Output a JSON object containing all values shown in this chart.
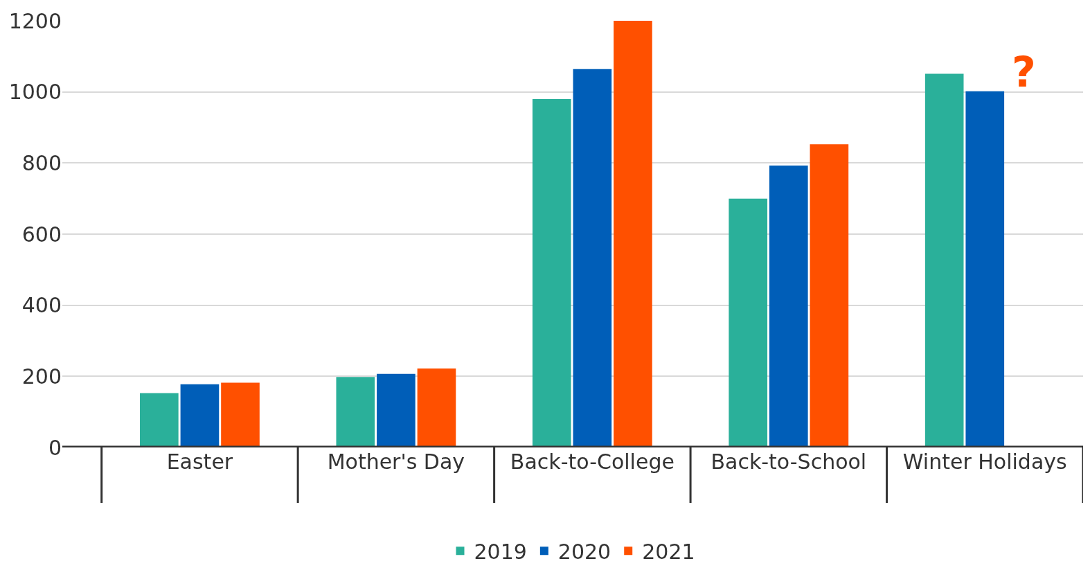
{
  "chart_data": {
    "type": "bar",
    "categories": [
      "Easter",
      "Mother's Day",
      "Back-to-College",
      "Back-to-School",
      "Winter Holidays"
    ],
    "series": [
      {
        "name": "2019",
        "color": "#2ab09a",
        "values": [
          153,
          198,
          980,
          700,
          1051
        ]
      },
      {
        "name": "2020",
        "color": "#005eb8",
        "values": [
          178,
          207,
          1064,
          793,
          1002
        ]
      },
      {
        "name": "2021",
        "color": "#ff5000",
        "values": [
          182,
          222,
          1200,
          853,
          null
        ]
      }
    ],
    "ylim": [
      0,
      1200
    ],
    "yticks": [
      0,
      200,
      400,
      600,
      800,
      1000,
      1200
    ],
    "grid": "y",
    "legend": "bottom",
    "annotations": [
      "?"
    ]
  }
}
